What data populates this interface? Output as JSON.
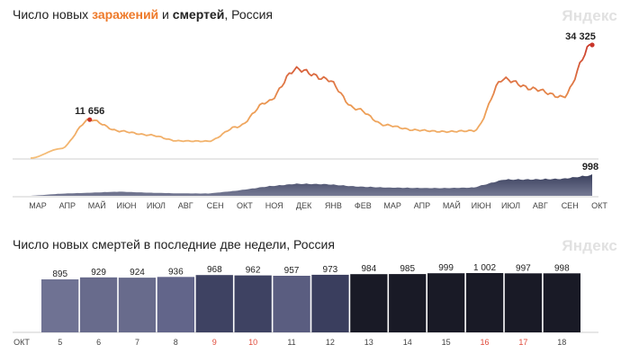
{
  "top": {
    "title_part1": "Число новых ",
    "title_infections": "заражений",
    "title_part2": " и ",
    "title_deaths": "смертей",
    "title_part3": ", Россия",
    "watermark": "Яндекс",
    "peak_label_1": "11 656",
    "peak_label_2": "34 325",
    "deaths_last_label": "998"
  },
  "bottom": {
    "title": "Число новых смертей в последние две недели, Россия",
    "watermark": "Яндекс",
    "month_label": "ОКТ"
  },
  "colors": {
    "infections_low": "#f5c07a",
    "infections_high": "#c8352a",
    "deaths_area": "#3d4466",
    "weekend_day": "#e04a3a",
    "grid": "#e6e6e6"
  },
  "chart_data": [
    {
      "type": "line",
      "id": "infections",
      "months": [
        "МАР",
        "АПР",
        "МАЙ",
        "ИЮН",
        "ИЮЛ",
        "АВГ",
        "СЕН",
        "ОКТ",
        "НОЯ",
        "ДЕК",
        "ЯНВ",
        "ФЕВ",
        "МАР",
        "АПР",
        "МАЙ",
        "ИЮН",
        "ИЮЛ",
        "АВГ",
        "СЕН",
        "ОКТ"
      ],
      "x": [
        "2020-03",
        "2020-04",
        "2020-05",
        "2020-06",
        "2020-07",
        "2020-08",
        "2020-09",
        "2020-10",
        "2020-11",
        "2020-12",
        "2021-01",
        "2021-02",
        "2021-03",
        "2021-04",
        "2021-05",
        "2021-06",
        "2021-07",
        "2021-08",
        "2021-09",
        "2021-10"
      ],
      "series": [
        {
          "values": [
            0,
            2800,
            11656,
            8200,
            7000,
            5200,
            5100,
            9500,
            17000,
            27000,
            24000,
            15000,
            10000,
            8500,
            8000,
            8300,
            24000,
            21000,
            18500,
            34325
          ]
        }
      ],
      "annotations": [
        {
          "x": "2020-05",
          "value": 11656
        },
        {
          "x": "2021-10",
          "value": 34325
        }
      ]
    },
    {
      "type": "area",
      "id": "deaths-daily",
      "x": [
        "2020-03",
        "2020-04",
        "2020-05",
        "2020-06",
        "2020-07",
        "2020-08",
        "2020-09",
        "2020-10",
        "2020-11",
        "2020-12",
        "2021-01",
        "2021-02",
        "2021-03",
        "2021-04",
        "2021-05",
        "2021-06",
        "2021-07",
        "2021-08",
        "2021-09",
        "2021-10"
      ],
      "series": [
        {
          "values": [
            0,
            100,
            150,
            200,
            150,
            120,
            110,
            250,
            450,
            580,
            560,
            450,
            400,
            380,
            370,
            400,
            780,
            790,
            820,
            998
          ]
        }
      ]
    },
    {
      "type": "bar",
      "id": "deaths-two-weeks",
      "categories": [
        "5",
        "6",
        "7",
        "8",
        "9",
        "10",
        "11",
        "12",
        "13",
        "14",
        "15",
        "16",
        "17",
        "18"
      ],
      "values": [
        895,
        929,
        924,
        936,
        968,
        962,
        957,
        973,
        984,
        985,
        999,
        1002,
        997,
        998
      ],
      "value_labels": [
        "895",
        "929",
        "924",
        "936",
        "968",
        "962",
        "957",
        "973",
        "984",
        "985",
        "999",
        "1 002",
        "997",
        "998"
      ],
      "weekend": [
        false,
        false,
        false,
        false,
        true,
        true,
        false,
        false,
        false,
        false,
        false,
        true,
        true,
        false
      ],
      "colors": [
        "#6f7293",
        "#686b8c",
        "#686b8c",
        "#62658a",
        "#3e4262",
        "#3e4262",
        "#5a5d80",
        "#3a3e5e",
        "#191a26",
        "#191a26",
        "#191a26",
        "#191a26",
        "#191a26",
        "#191a26"
      ],
      "ylim": [
        0,
        1002
      ]
    }
  ]
}
